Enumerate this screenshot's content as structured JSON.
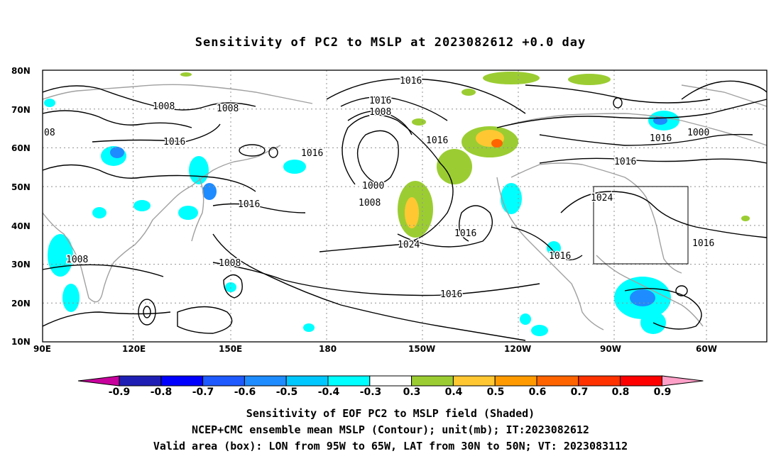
{
  "title": "Sensitivity of PC2 to MSLP at 2023082612 +0.0 day",
  "axes": {
    "lat_labels": [
      "80N",
      "70N",
      "60N",
      "50N",
      "40N",
      "30N",
      "20N",
      "10N"
    ],
    "lon_labels": [
      "90E",
      "120E",
      "150E",
      "180",
      "150W",
      "120W",
      "90W",
      "60W"
    ]
  },
  "contour_labels": [
    "1016",
    "1016",
    "1008",
    "1008",
    "1008",
    "08",
    "1016",
    "1016",
    "1016",
    "1000",
    "1008",
    "1016",
    "1024",
    "1016",
    "1016",
    "1008",
    "1008",
    "1016",
    "1016",
    "1016",
    "1024",
    "1016",
    "1000"
  ],
  "colorbar": {
    "ticks": [
      "-0.9",
      "-0.8",
      "-0.7",
      "-0.6",
      "-0.5",
      "-0.4",
      "-0.3",
      "0.3",
      "0.4",
      "0.5",
      "0.6",
      "0.7",
      "0.8",
      "0.9"
    ],
    "colors": [
      "#c8009c",
      "#1e1eb4",
      "#0000ff",
      "#1e5aff",
      "#1e8cff",
      "#00c8ff",
      "#00ffff",
      "#ffffff",
      "#9bcd32",
      "#ffc832",
      "#ff9b00",
      "#ff6400",
      "#ff3200",
      "#ff0000",
      "#ffa0c8"
    ]
  },
  "valid_box": {
    "lon_west": -95,
    "lon_east": -65,
    "lat_south": 30,
    "lat_north": 50
  },
  "captions": [
    "Sensitivity of EOF PC2 to MSLP field (Shaded)",
    "NCEP+CMC ensemble mean MSLP (Contour); unit(mb); IT:2023082612",
    "Valid area (box): LON from 95W to 65W, LAT from 30N to 50N; VT: 2023083112"
  ]
}
